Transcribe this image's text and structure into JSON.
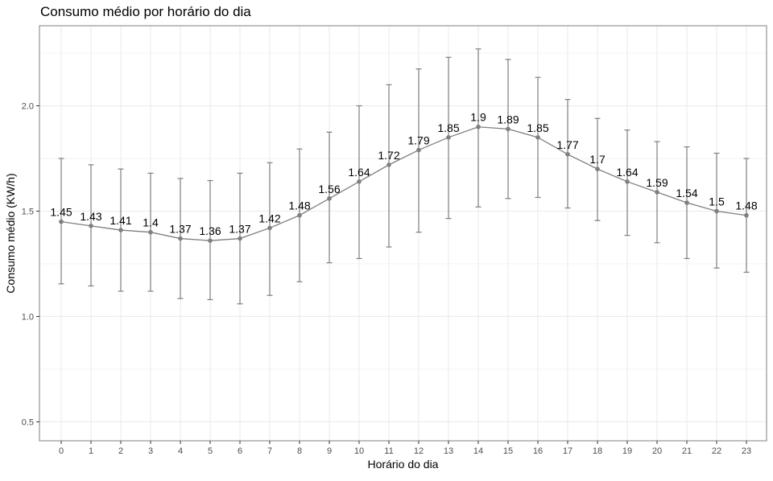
{
  "chart_data": {
    "type": "line",
    "title": "Consumo médio por horário do dia",
    "xlabel": "Horário do dia",
    "ylabel": "Consumo médio (KW/h)",
    "x": [
      0,
      1,
      2,
      3,
      4,
      5,
      6,
      7,
      8,
      9,
      10,
      11,
      12,
      13,
      14,
      15,
      16,
      17,
      18,
      19,
      20,
      21,
      22,
      23
    ],
    "series": [
      {
        "values": [
          1.45,
          1.43,
          1.41,
          1.4,
          1.37,
          1.36,
          1.37,
          1.42,
          1.48,
          1.56,
          1.64,
          1.72,
          1.79,
          1.85,
          1.9,
          1.89,
          1.85,
          1.77,
          1.7,
          1.64,
          1.59,
          1.54,
          1.5,
          1.48
        ],
        "labels": [
          "1.45",
          "1.43",
          "1.41",
          "1.4",
          "1.37",
          "1.36",
          "1.37",
          "1.42",
          "1.48",
          "1.56",
          "1.64",
          "1.72",
          "1.79",
          "1.85",
          "1.9",
          "1.89",
          "1.85",
          "1.77",
          "1.7",
          "1.64",
          "1.59",
          "1.54",
          "1.5",
          "1.48"
        ],
        "error_low": [
          1.155,
          1.145,
          1.12,
          1.12,
          1.085,
          1.08,
          1.06,
          1.1,
          1.165,
          1.255,
          1.275,
          1.33,
          1.4,
          1.465,
          1.52,
          1.56,
          1.565,
          1.515,
          1.455,
          1.385,
          1.35,
          1.275,
          1.23,
          1.21
        ],
        "error_high": [
          1.75,
          1.72,
          1.7,
          1.68,
          1.655,
          1.645,
          1.68,
          1.73,
          1.795,
          1.875,
          2.0,
          2.1,
          2.175,
          2.23,
          2.27,
          2.22,
          2.135,
          2.03,
          1.94,
          1.885,
          1.83,
          1.805,
          1.775,
          1.75
        ]
      }
    ],
    "xticks": [
      "0",
      "1",
      "2",
      "3",
      "4",
      "5",
      "6",
      "7",
      "8",
      "9",
      "10",
      "11",
      "12",
      "13",
      "14",
      "15",
      "16",
      "17",
      "18",
      "19",
      "20",
      "21",
      "22",
      "23"
    ],
    "yticks": [
      "0.5",
      "1.0",
      "1.5",
      "2.0"
    ],
    "ylim": [
      0.41,
      2.38
    ],
    "grid": true,
    "legend": "none",
    "colors": {
      "line": "#7f7f7f",
      "point": "#7f7f7f",
      "grid": "#ebebeb",
      "panel_border": "#7f7f7f",
      "label": "#000000",
      "tick_text": "#4d4d4d"
    }
  }
}
